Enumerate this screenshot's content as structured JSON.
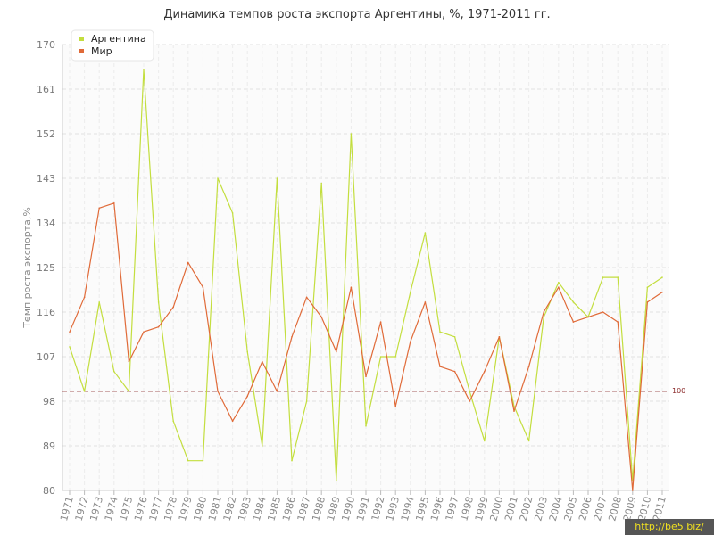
{
  "chart_data": {
    "type": "line",
    "title": "Динамика темпов роста экспорта Аргентины, %, 1971-2011 гг.",
    "xlabel": "",
    "ylabel": "Темп роста экспорта,%",
    "ylim": [
      80,
      170
    ],
    "yticks": [
      80,
      89,
      98,
      107,
      116,
      125,
      134,
      143,
      152,
      161,
      170
    ],
    "x": [
      1971,
      1972,
      1973,
      1974,
      1975,
      1976,
      1977,
      1978,
      1979,
      1980,
      1981,
      1982,
      1983,
      1984,
      1985,
      1986,
      1987,
      1988,
      1989,
      1990,
      1991,
      1992,
      1993,
      1994,
      1995,
      1996,
      1997,
      1998,
      1999,
      2000,
      2001,
      2002,
      2003,
      2004,
      2005,
      2006,
      2007,
      2008,
      2009,
      2010,
      2011
    ],
    "series": [
      {
        "name": "Аргентина",
        "color": "#c3de3e",
        "values": [
          109,
          100,
          118,
          104,
          100,
          165,
          118,
          94,
          86,
          86,
          143,
          136,
          108,
          89,
          143,
          86,
          98,
          142,
          82,
          152,
          93,
          107,
          107,
          120,
          132,
          112,
          111,
          100,
          90,
          111,
          97,
          90,
          115,
          122,
          118,
          115,
          123,
          123,
          82,
          121,
          123
        ]
      },
      {
        "name": "Мир",
        "color": "#e06a38",
        "values": [
          112,
          119,
          137,
          138,
          106,
          112,
          113,
          117,
          126,
          121,
          100,
          94,
          99,
          106,
          100,
          111,
          119,
          115,
          108,
          121,
          103,
          114,
          97,
          110,
          118,
          105,
          104,
          98,
          104,
          111,
          96,
          105,
          116,
          121,
          114,
          115,
          116,
          114,
          80,
          118,
          120
        ]
      }
    ],
    "reference_line": {
      "value": 100,
      "label": "100",
      "color": "#8b2b2b"
    },
    "legend": "top-left",
    "grid": true
  },
  "watermark": "http://be5.biz/"
}
